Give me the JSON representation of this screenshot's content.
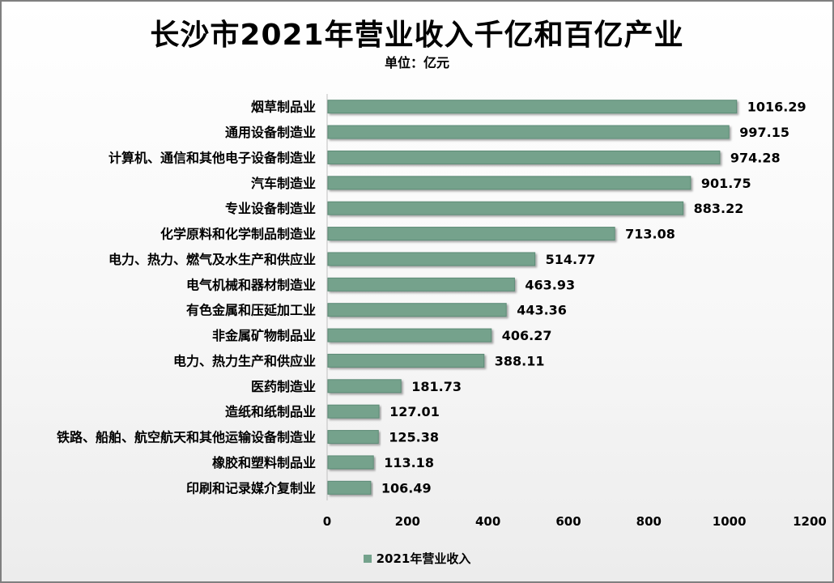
{
  "chart_data": {
    "type": "bar",
    "orientation": "horizontal",
    "title": "长沙市2021年营业收入千亿和百亿产业",
    "subtitle": "单位：亿元",
    "categories": [
      "烟草制品业",
      "通用设备制造业",
      "计算机、通信和其他电子设备制造业",
      "汽车制造业",
      "专业设备制造业",
      "化学原料和化学制品制造业",
      "电力、热力、燃气及水生产和供应业",
      "电气机械和器材制造业",
      "有色金属和压延加工业",
      "非金属矿物制品业",
      "电力、热力生产和供应业",
      "医药制造业",
      "造纸和纸制品业",
      "铁路、船舶、航空航天和其他运输设备制造业",
      "橡胶和塑料制品业",
      "印刷和记录媒介复制业"
    ],
    "series": [
      {
        "name": "2021年营业收入",
        "values": [
          1016.29,
          997.15,
          974.28,
          901.75,
          883.22,
          713.08,
          514.77,
          463.93,
          443.36,
          406.27,
          388.11,
          181.73,
          127.01,
          125.38,
          113.18,
          106.49
        ],
        "labels": [
          "1016.29",
          "997.15",
          "974.28",
          "901.75",
          "883.22",
          "713.08",
          "514.77",
          "463.93",
          "443.36",
          "406.27",
          "388.11",
          "181.73",
          "127.01",
          "125.38",
          "113.18",
          "106.49"
        ]
      }
    ],
    "xlim": [
      0,
      1200
    ],
    "xticks": [
      0,
      200,
      400,
      600,
      800,
      1000,
      1200
    ],
    "grid": false,
    "legend_position": "bottom",
    "colors": {
      "bar": "#74a28c",
      "bar_border": "#5d8b76"
    }
  }
}
